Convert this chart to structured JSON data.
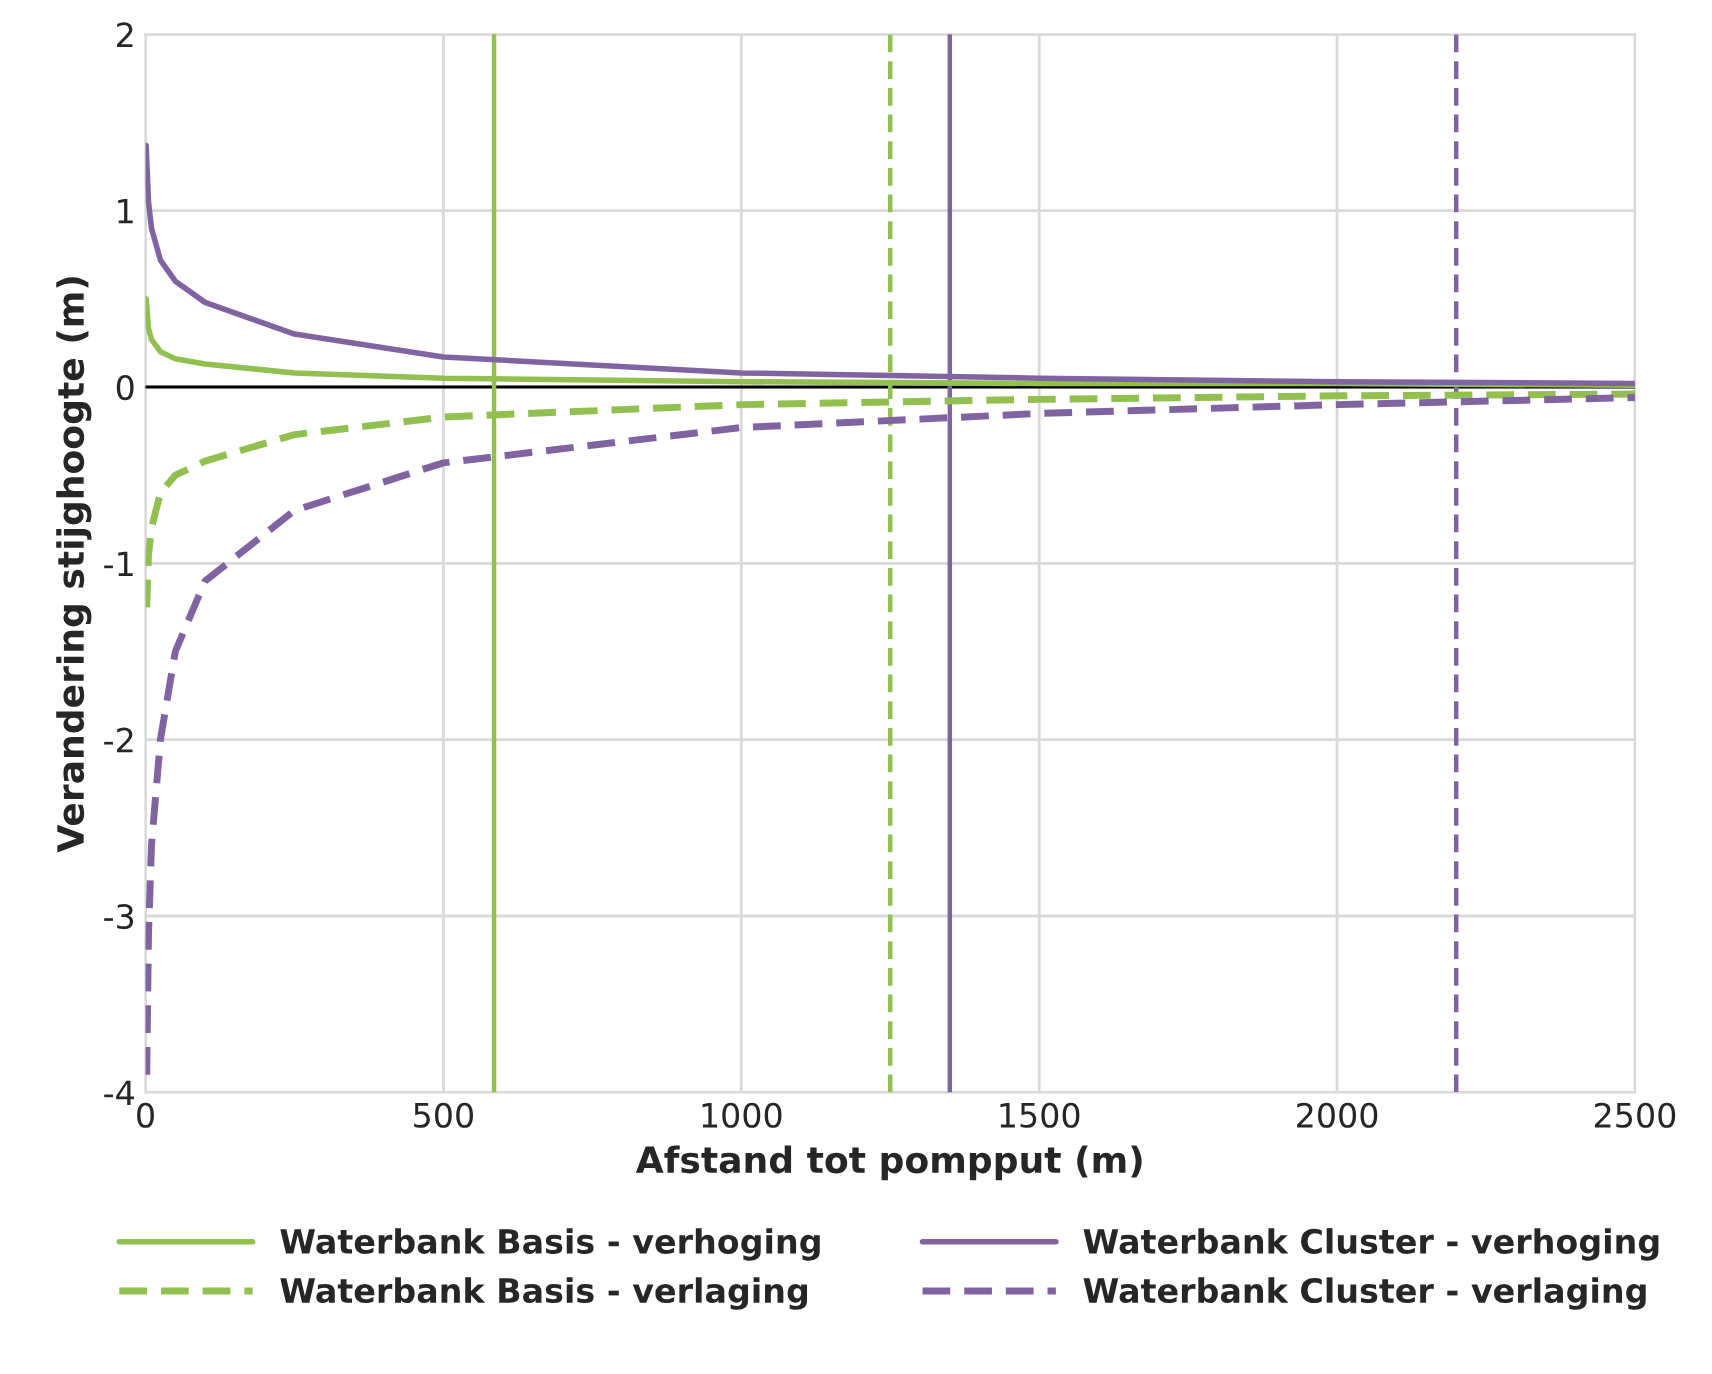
{
  "chart_data": {
    "type": "line",
    "xlabel": "Afstand tot pompput (m)",
    "ylabel": "Verandering stijghoogte (m)",
    "xlim": [
      0,
      2500
    ],
    "xticks": [
      0,
      500,
      1000,
      1500,
      2000,
      2500
    ],
    "ylim": [
      -4,
      2
    ],
    "yticks": [
      -4,
      -3,
      -2,
      -1,
      0,
      1,
      2
    ],
    "grid": true,
    "legend": "bottom",
    "marker": "none",
    "series": [
      {
        "name": "Waterbank Basis - verhoging",
        "color": "#92c050",
        "line_style": "solid",
        "x": [
          1,
          5,
          10,
          25,
          50,
          100,
          250,
          500,
          1000,
          1500,
          2000,
          2500
        ],
        "values": [
          0.5,
          0.33,
          0.27,
          0.2,
          0.16,
          0.13,
          0.08,
          0.05,
          0.03,
          0.02,
          0.02,
          0.01
        ]
      },
      {
        "name": "Waterbank Basis - verlaging",
        "color": "#92c050",
        "line_style": "dashed",
        "x": [
          2,
          5,
          10,
          25,
          50,
          100,
          250,
          500,
          1000,
          1500,
          2000,
          2500
        ],
        "values": [
          -1.25,
          -0.95,
          -0.8,
          -0.6,
          -0.5,
          -0.42,
          -0.27,
          -0.17,
          -0.1,
          -0.07,
          -0.05,
          -0.04
        ]
      },
      {
        "name": "Waterbank Cluster - verhoging",
        "color": "#8064a2",
        "line_style": "solid",
        "x": [
          1,
          5,
          10,
          25,
          50,
          100,
          250,
          500,
          1000,
          1500,
          2000,
          2500
        ],
        "values": [
          1.37,
          1.05,
          0.9,
          0.72,
          0.6,
          0.48,
          0.3,
          0.17,
          0.08,
          0.05,
          0.03,
          0.02
        ]
      },
      {
        "name": "Waterbank Cluster - verlaging",
        "color": "#8064a2",
        "line_style": "dashed",
        "x": [
          2,
          5,
          10,
          25,
          50,
          100,
          250,
          500,
          1000,
          1500,
          2000,
          2500
        ],
        "values": [
          -3.9,
          -3.1,
          -2.6,
          -2.0,
          -1.5,
          -1.1,
          -0.7,
          -0.43,
          -0.23,
          -0.15,
          -0.1,
          -0.06
        ]
      }
    ],
    "ref_lines": [
      {
        "axis": "y",
        "value": 0,
        "color": "#000000",
        "line_style": "solid"
      },
      {
        "axis": "x",
        "value": 585,
        "color": "#92c050",
        "line_style": "solid"
      },
      {
        "axis": "x",
        "value": 1250,
        "color": "#92c050",
        "line_style": "dashed"
      },
      {
        "axis": "x",
        "value": 1350,
        "color": "#8064a2",
        "line_style": "solid"
      },
      {
        "axis": "x",
        "value": 2200,
        "color": "#8064a2",
        "line_style": "dashed"
      }
    ]
  }
}
